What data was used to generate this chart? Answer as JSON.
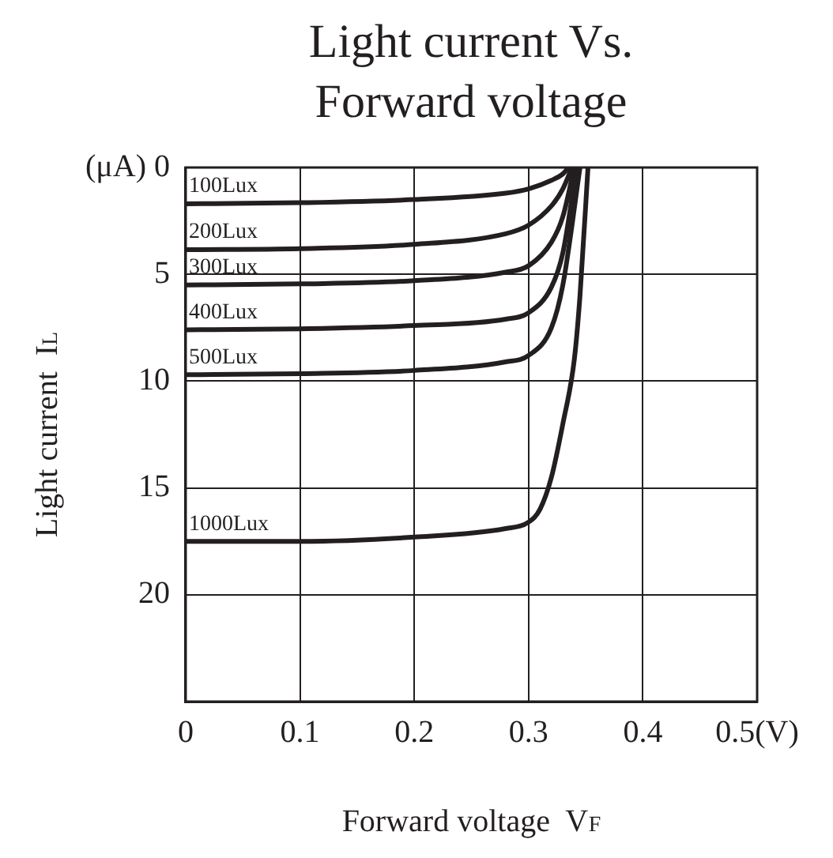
{
  "chart_data": {
    "type": "line",
    "title": "Light current Vs. Forward voltage",
    "xlabel": "Forward voltage  V$_{F}$",
    "ylabel": "Light current  I$_{L}$",
    "xlim": [
      0,
      0.5
    ],
    "xticks": [
      0,
      0.1,
      0.2,
      0.3,
      0.4,
      {
        "value": 0.5,
        "label": "0.5(V)"
      }
    ],
    "ylim": [
      25,
      0
    ],
    "yticks": [
      {
        "value": 0,
        "label": "(μA) 0"
      },
      5,
      10,
      15,
      20
    ],
    "grid": true,
    "legend": false,
    "marker": "none",
    "line_style": "solid",
    "series": [
      {
        "name": "100Lux",
        "color": "#231f20",
        "x": [
          0,
          0.1,
          0.2,
          0.28,
          0.3,
          0.32,
          0.33,
          0.335
        ],
        "values": [
          1.7,
          1.65,
          1.5,
          1.2,
          1.0,
          0.6,
          0.3,
          0
        ]
      },
      {
        "name": "200Lux",
        "color": "#231f20",
        "x": [
          0,
          0.1,
          0.2,
          0.28,
          0.3,
          0.32,
          0.33,
          0.338
        ],
        "values": [
          3.85,
          3.8,
          3.6,
          3.1,
          2.7,
          1.8,
          1.0,
          0
        ]
      },
      {
        "name": "300Lux",
        "color": "#231f20",
        "x": [
          0,
          0.1,
          0.2,
          0.28,
          0.3,
          0.32,
          0.33,
          0.34
        ],
        "values": [
          5.5,
          5.45,
          5.3,
          4.9,
          4.6,
          3.5,
          2.3,
          0
        ]
      },
      {
        "name": "400Lux",
        "color": "#231f20",
        "x": [
          0,
          0.1,
          0.2,
          0.28,
          0.3,
          0.32,
          0.33,
          0.342
        ],
        "values": [
          7.6,
          7.55,
          7.4,
          7.1,
          6.8,
          5.6,
          4,
          0
        ]
      },
      {
        "name": "500Lux",
        "color": "#231f20",
        "x": [
          0,
          0.1,
          0.2,
          0.28,
          0.3,
          0.32,
          0.33,
          0.345
        ],
        "values": [
          9.7,
          9.65,
          9.5,
          9.1,
          8.8,
          7.5,
          5.5,
          0
        ]
      },
      {
        "name": "1000Lux",
        "color": "#231f20",
        "x": [
          0,
          0.1,
          0.2,
          0.28,
          0.3,
          0.31,
          0.32,
          0.33,
          0.34,
          0.345,
          0.352
        ],
        "values": [
          17.5,
          17.5,
          17.3,
          16.9,
          16.6,
          16,
          14.5,
          12,
          9,
          6,
          0
        ]
      }
    ]
  }
}
